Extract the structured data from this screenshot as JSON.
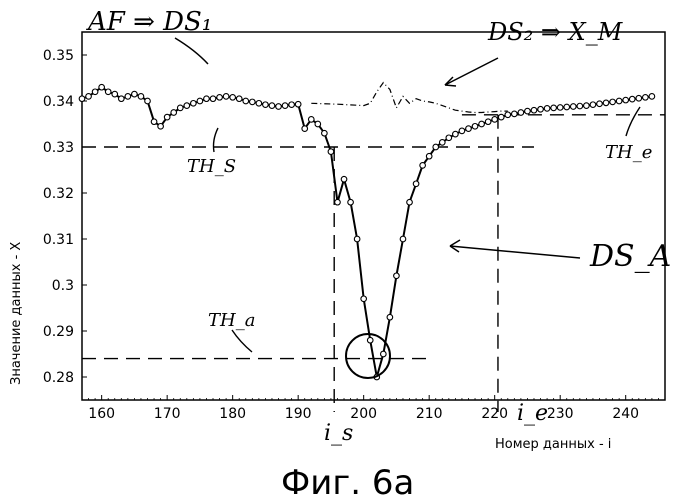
{
  "chart_data": {
    "type": "line",
    "caption": "Фиг. 6а",
    "xlabel": "Номер данных - i",
    "ylabel": "Значение данных - X",
    "xlim": [
      157,
      246
    ],
    "ylim": [
      0.275,
      0.355
    ],
    "x_ticks": [
      "160",
      "170",
      "180",
      "190",
      "200",
      "210",
      "220",
      "230",
      "240"
    ],
    "y_ticks": [
      "0.28",
      "0.29",
      "0.3",
      "0.31",
      "0.32",
      "0.33",
      "0.34",
      "0.35"
    ],
    "grid": false,
    "series": [
      {
        "name": "DS_A",
        "style": "solid-with-circle-markers",
        "x": [
          157,
          158,
          159,
          160,
          161,
          162,
          163,
          164,
          165,
          166,
          167,
          168,
          169,
          170,
          171,
          172,
          173,
          174,
          175,
          176,
          177,
          178,
          179,
          180,
          181,
          182,
          183,
          184,
          185,
          186,
          187,
          188,
          189,
          190,
          191,
          192,
          193,
          194,
          195,
          196,
          197,
          198,
          199,
          200,
          201,
          202,
          203,
          204,
          205,
          206,
          207,
          208,
          209,
          210,
          211,
          212,
          213,
          214,
          215,
          216,
          217,
          218,
          219,
          220,
          221,
          222,
          223,
          224,
          225,
          226,
          227,
          228,
          229,
          230,
          231,
          232,
          233,
          234,
          235,
          236,
          237,
          238,
          239,
          240,
          241,
          242,
          243,
          244
        ],
        "y": [
          0.3405,
          0.341,
          0.342,
          0.343,
          0.342,
          0.3415,
          0.3405,
          0.341,
          0.3415,
          0.341,
          0.34,
          0.3355,
          0.3345,
          0.3365,
          0.3375,
          0.3385,
          0.339,
          0.3395,
          0.34,
          0.3405,
          0.3405,
          0.3408,
          0.341,
          0.3408,
          0.3405,
          0.34,
          0.3398,
          0.3395,
          0.3392,
          0.339,
          0.3388,
          0.339,
          0.3392,
          0.3393,
          0.334,
          0.336,
          0.335,
          0.333,
          0.329,
          0.318,
          0.323,
          0.318,
          0.31,
          0.297,
          0.288,
          0.28,
          0.285,
          0.293,
          0.302,
          0.31,
          0.318,
          0.322,
          0.326,
          0.328,
          0.33,
          0.331,
          0.332,
          0.3328,
          0.3335,
          0.334,
          0.3345,
          0.335,
          0.3355,
          0.336,
          0.3365,
          0.337,
          0.3372,
          0.3375,
          0.3378,
          0.338,
          0.3382,
          0.3384,
          0.3385,
          0.3386,
          0.3387,
          0.3388,
          0.3389,
          0.339,
          0.3392,
          0.3394,
          0.3396,
          0.3398,
          0.34,
          0.3402,
          0.3404,
          0.3406,
          0.3408,
          0.341
        ]
      },
      {
        "name": "DS_2",
        "style": "dash-dot",
        "x": [
          192,
          196,
          200,
          201,
          202,
          203,
          204,
          205,
          206,
          207,
          208,
          209,
          210,
          211,
          212,
          213,
          214,
          215,
          216,
          217,
          218,
          219,
          220,
          221,
          222
        ],
        "y": [
          0.3395,
          0.3393,
          0.339,
          0.3395,
          0.342,
          0.344,
          0.3425,
          0.3385,
          0.341,
          0.3395,
          0.3405,
          0.34,
          0.3398,
          0.3395,
          0.339,
          0.3385,
          0.338,
          0.3378,
          0.3376,
          0.3375,
          0.3375,
          0.3376,
          0.3377,
          0.3378,
          0.3378
        ]
      }
    ],
    "thresholds": [
      {
        "label": "TH_s",
        "value": 0.33,
        "x_from": 157,
        "x_to": 226
      },
      {
        "label": "TH_e",
        "value": 0.337,
        "x_from": 215,
        "x_to": 246
      },
      {
        "label": "TH_a",
        "value": 0.284,
        "x_from": 157,
        "x_to": 210
      }
    ],
    "verticals": [
      {
        "label": "i_s",
        "x": 195.5
      },
      {
        "label": "i_e",
        "x": 220.5
      }
    ],
    "minimum": {
      "x": 200,
      "y": 0.28
    },
    "annotations": {
      "top_left": "AF ⇒ DS₁",
      "top_right": "DS₂ ⇒ X_M",
      "dsa": "DS_A",
      "ths": "TH_S",
      "the": "TH_e",
      "tha": "TH_a",
      "is": "i_s",
      "ie": "i_e"
    }
  }
}
